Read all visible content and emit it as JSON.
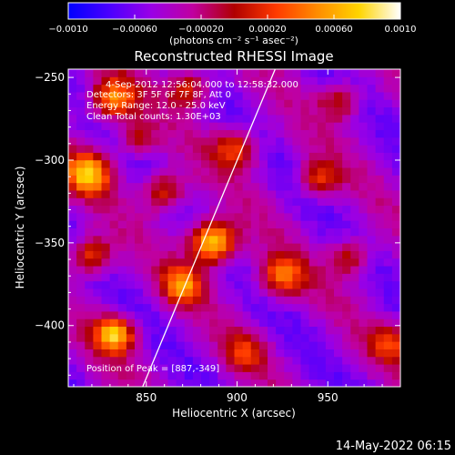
{
  "colorbar": {
    "ticks": [
      "−0.0010",
      "−0.00060",
      "−0.00020",
      "0.00020",
      "0.00060",
      "0.0010"
    ],
    "unit_label": "(photons cm⁻² s⁻¹ asec⁻²)",
    "range": [
      -0.001,
      0.001
    ],
    "colormap": [
      "#0000ff",
      "#4b00ff",
      "#9a00e6",
      "#c000a0",
      "#b00000",
      "#ff3a00",
      "#ff8c00",
      "#ffd400",
      "#ffffff"
    ]
  },
  "chart_data": {
    "type": "heatmap",
    "title": "Reconstructed RHESSI Image",
    "xlabel": "Heliocentric X (arcsec)",
    "ylabel": "Heliocentric Y (arcsec)",
    "xlim": [
      807,
      990
    ],
    "ylim": [
      -437,
      -245
    ],
    "xticks": [
      850,
      900,
      950
    ],
    "yticks": [
      -250,
      -300,
      -350,
      -400
    ],
    "info_lines": [
      "4-Sep-2012 12:56:04.000 to 12:58:32.000",
      "Detectors: 3F 5F 6F 7F 8F, Att 0",
      "Energy Range: 12.0 - 25.0 keV",
      "Clean    Total counts: 1.30E+03"
    ],
    "peak_label": "Position of Peak = [887,-349]",
    "peak": [
      887,
      -349
    ],
    "limb_line": {
      "from": [
        848,
        -437
      ],
      "to": [
        921,
        -245
      ]
    },
    "sources": [
      {
        "x": 887,
        "y": -349,
        "amp": 1.0,
        "sigma": 9
      },
      {
        "x": 833,
        "y": -405,
        "amp": 0.85,
        "sigma": 8
      },
      {
        "x": 818,
        "y": -307,
        "amp": 0.8,
        "sigma": 9
      },
      {
        "x": 832,
        "y": -262,
        "amp": 0.7,
        "sigma": 9
      },
      {
        "x": 870,
        "y": -375,
        "amp": 0.65,
        "sigma": 8
      },
      {
        "x": 900,
        "y": -292,
        "amp": 0.55,
        "sigma": 9
      },
      {
        "x": 925,
        "y": -370,
        "amp": 0.6,
        "sigma": 9
      },
      {
        "x": 860,
        "y": -318,
        "amp": 0.55,
        "sigma": 8
      },
      {
        "x": 946,
        "y": -310,
        "amp": 0.5,
        "sigma": 8
      },
      {
        "x": 963,
        "y": -358,
        "amp": 0.45,
        "sigma": 8
      },
      {
        "x": 958,
        "y": -263,
        "amp": 0.45,
        "sigma": 8
      },
      {
        "x": 874,
        "y": -255,
        "amp": 0.5,
        "sigma": 8
      },
      {
        "x": 905,
        "y": -415,
        "amp": 0.4,
        "sigma": 8
      },
      {
        "x": 820,
        "y": -357,
        "amp": 0.6,
        "sigma": 8
      },
      {
        "x": 985,
        "y": -410,
        "amp": 0.45,
        "sigma": 8
      },
      {
        "x": 845,
        "y": -286,
        "amp": 0.45,
        "sigma": 7
      }
    ]
  },
  "footer": {
    "timestamp": "14-May-2022 06:15"
  }
}
